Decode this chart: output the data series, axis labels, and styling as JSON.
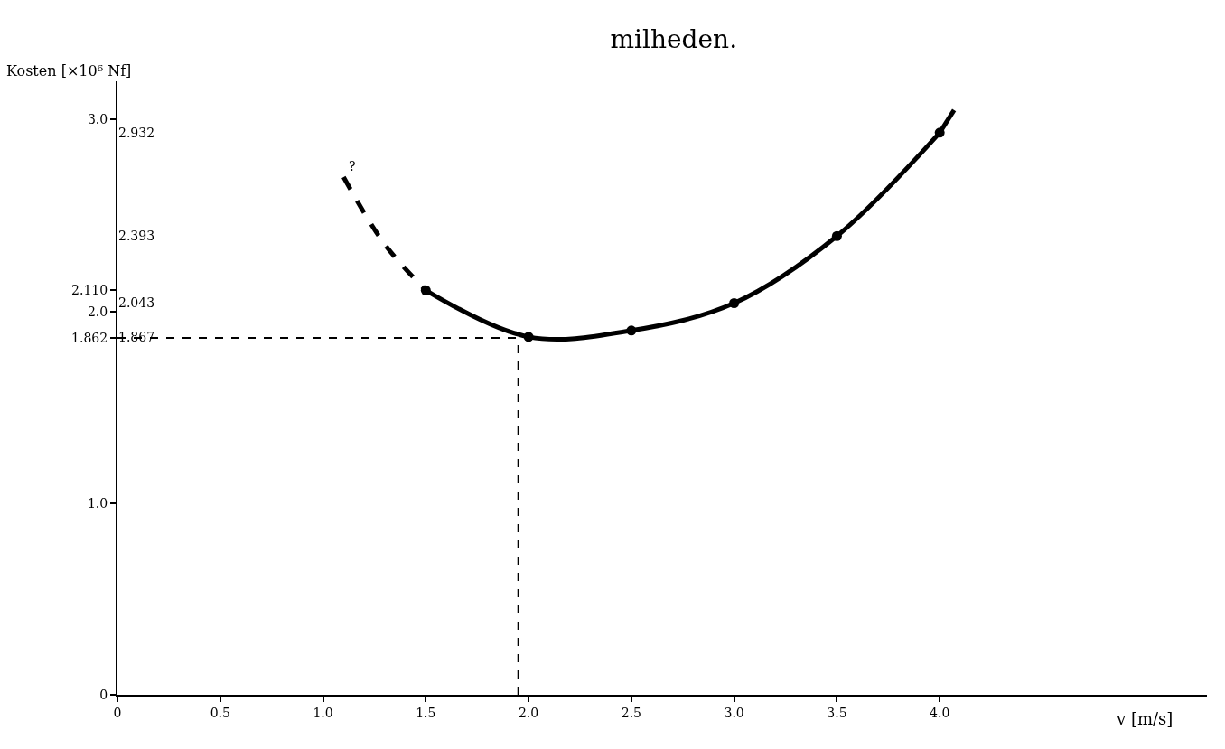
{
  "chart_data": {
    "type": "line",
    "title": "milheden.",
    "xlabel": "v [m/s]",
    "ylabel": "Kosten [×10⁶ Nf]",
    "xlim": [
      0,
      5.3
    ],
    "ylim": [
      0,
      3.2
    ],
    "xticks": [
      {
        "value": 0,
        "label": "0"
      },
      0.5,
      {
        "value": 1.0,
        "label": "1.0"
      },
      1.5,
      {
        "value": 2.0,
        "label": "2.0"
      },
      2.5,
      {
        "value": 3.0,
        "label": "3.0"
      },
      3.5,
      {
        "value": 4.0,
        "label": "4.0"
      }
    ],
    "yticks": [
      {
        "value": 0,
        "label": "0"
      },
      {
        "value": 1.0,
        "label": "1.0"
      },
      1.862,
      {
        "value": 2.0,
        "label": "2.0"
      },
      {
        "value": 2.11,
        "label": "2.110"
      },
      {
        "value": 3.0,
        "label": "3.0"
      }
    ],
    "series": [
      {
        "color": "#000000",
        "x": [
          1.5,
          2.0,
          2.5,
          3.0,
          3.5,
          4.0
        ],
        "values": [
          2.11,
          1.867,
          1.9,
          2.043,
          2.393,
          2.932
        ],
        "marker": "circle",
        "line_style": "solid"
      },
      {
        "color": "#000000",
        "x": [
          1.1,
          1.3,
          1.5
        ],
        "values": [
          2.7,
          2.35,
          2.11
        ],
        "marker": "none",
        "line_style": "dashed"
      },
      {
        "color": "#000000",
        "x": [
          4.0,
          4.07
        ],
        "values": [
          2.932,
          3.05
        ],
        "marker": "none",
        "line_style": "solid"
      }
    ],
    "ref_lines": [
      {
        "axis": "y",
        "value": 1.862,
        "line_style": "dashed",
        "color": "#000000"
      },
      {
        "axis": "x",
        "value": 1.95,
        "line_style": "dashed",
        "color": "#000000"
      }
    ],
    "y2lim": [
      0,
      3.2
    ],
    "y2ticks": [
      1.867,
      2.043,
      2.393,
      2.932
    ],
    "annotations": [
      {
        "text": "?",
        "x": 1.1,
        "y": 2.7
      }
    ]
  }
}
